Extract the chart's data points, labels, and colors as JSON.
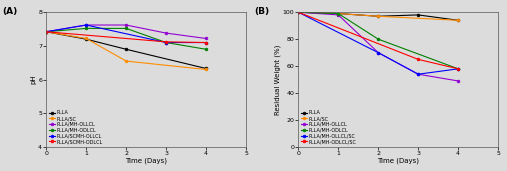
{
  "panel_A": {
    "title": "(A)",
    "xlabel": "Time (Days)",
    "ylabel": "pH",
    "xlim": [
      0,
      5
    ],
    "ylim": [
      4,
      8
    ],
    "yticks": [
      4,
      5,
      6,
      7,
      8
    ],
    "xticks": [
      0,
      1,
      2,
      3,
      4,
      5
    ],
    "series": [
      {
        "label": "PLLA",
        "color": "#000000",
        "x": [
          0,
          1,
          2,
          4
        ],
        "y": [
          7.42,
          7.2,
          6.9,
          6.33
        ]
      },
      {
        "label": "PLLA/SC",
        "color": "#FF8C00",
        "x": [
          0,
          1,
          2,
          4
        ],
        "y": [
          7.42,
          7.22,
          6.55,
          6.3
        ]
      },
      {
        "label": "PLLA/MH-OLLCL",
        "color": "#9400D3",
        "x": [
          0,
          1,
          2,
          3,
          4
        ],
        "y": [
          7.42,
          7.62,
          7.62,
          7.38,
          7.22
        ]
      },
      {
        "label": "PLLA/MH-ODLCL",
        "color": "#008000",
        "x": [
          0,
          1,
          2,
          3,
          4
        ],
        "y": [
          7.42,
          7.52,
          7.52,
          7.1,
          6.9
        ]
      },
      {
        "label": "PLLA/SCMH-OLLCL",
        "color": "#0000FF",
        "x": [
          0,
          1,
          3,
          4
        ],
        "y": [
          7.42,
          7.62,
          7.1,
          7.1
        ]
      },
      {
        "label": "PLLA/SCMH-ODLCL",
        "color": "#FF0000",
        "x": [
          0,
          3,
          4
        ],
        "y": [
          7.42,
          7.12,
          7.1
        ]
      }
    ]
  },
  "panel_B": {
    "title": "(B)",
    "xlabel": "Time (Days)",
    "ylabel": "Residual Weight (%)",
    "xlim": [
      0,
      5
    ],
    "ylim": [
      0,
      100
    ],
    "yticks": [
      0,
      20,
      40,
      60,
      80,
      100
    ],
    "xticks": [
      0,
      1,
      2,
      3,
      4,
      5
    ],
    "series": [
      {
        "label": "PLLA",
        "color": "#000000",
        "x": [
          0,
          1,
          2,
          3,
          4
        ],
        "y": [
          100,
          99,
          97,
          98,
          94
        ]
      },
      {
        "label": "PLLA/SC",
        "color": "#FF8C00",
        "x": [
          0,
          1,
          2,
          4
        ],
        "y": [
          100,
          99,
          97,
          94
        ]
      },
      {
        "label": "PLLA/MH-OLLCL",
        "color": "#9400D3",
        "x": [
          0,
          1,
          2,
          3,
          4
        ],
        "y": [
          100,
          98,
          70,
          54,
          49
        ]
      },
      {
        "label": "PLLA/MH-ODLCL",
        "color": "#008000",
        "x": [
          0,
          1,
          2,
          4
        ],
        "y": [
          100,
          99,
          80,
          58
        ]
      },
      {
        "label": "PLLA/MH-OLLCL/SC",
        "color": "#0000FF",
        "x": [
          0,
          2,
          3,
          4
        ],
        "y": [
          100,
          70,
          54,
          58
        ]
      },
      {
        "label": "PLLA/MH-ODLCL/SC",
        "color": "#FF0000",
        "x": [
          0,
          3,
          4
        ],
        "y": [
          100,
          65,
          58
        ]
      }
    ]
  },
  "marker": "o",
  "markersize": 2.0,
  "linewidth": 0.8,
  "legend_fontsize": 3.5,
  "axis_label_fontsize": 5.0,
  "tick_fontsize": 4.5,
  "title_fontsize": 6.5,
  "bg_color": "#DCDCDC"
}
